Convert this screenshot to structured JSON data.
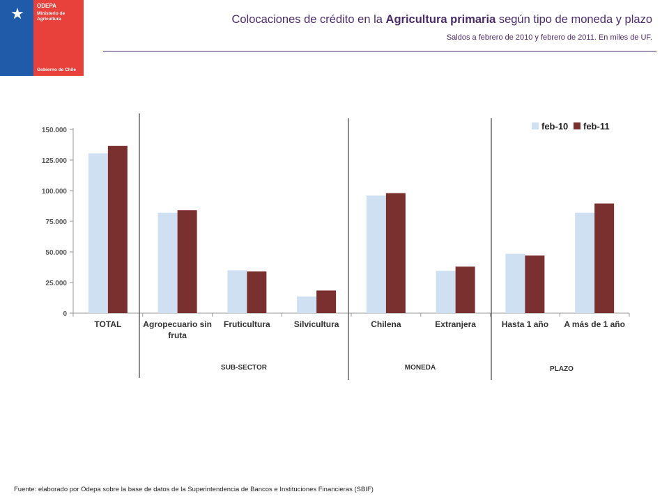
{
  "logo": {
    "org": "ODEPA",
    "ministry": "Ministerio de\nAgricultura",
    "government": "Gobierno de Chile",
    "icon": "coat-of-arms-icon"
  },
  "header": {
    "title_prefix": "Colocaciones de crédito en la ",
    "title_bold": "Agricultura primaria",
    "title_suffix": " según tipo de moneda y plazo",
    "subtitle": "Saldos a febrero de 2010  y febrero de 2011. En miles de UF."
  },
  "chart_data": {
    "type": "bar",
    "categories": [
      "TOTAL",
      "Agropecuario sin fruta",
      "Fruticultura",
      "Silvicultura",
      "Chilena",
      "Extranjera",
      "Hasta 1 año",
      "A más de 1 año"
    ],
    "category_lines": [
      [
        "TOTAL"
      ],
      [
        "Agropecuario sin",
        "fruta"
      ],
      [
        "Fruticultura"
      ],
      [
        "Silvicultura"
      ],
      [
        "Chilena"
      ],
      [
        "Extranjera"
      ],
      [
        "Hasta 1 año"
      ],
      [
        "A más de 1 año"
      ]
    ],
    "series": [
      {
        "name": "feb-10",
        "color": "#cfe0f3",
        "values": [
          130500,
          82000,
          35000,
          13500,
          96000,
          34500,
          48500,
          82000
        ]
      },
      {
        "name": "feb-11",
        "color": "#7b3030",
        "values": [
          136500,
          84000,
          34000,
          18500,
          98000,
          38000,
          47000,
          89500
        ]
      }
    ],
    "ylim": [
      0,
      150000
    ],
    "yticks": [
      "0",
      "25.000",
      "50.000",
      "75.000",
      "100.000",
      "125.000",
      "150.000"
    ],
    "ytick_values": [
      0,
      25000,
      50000,
      75000,
      100000,
      125000,
      150000
    ],
    "legend_position": "top-right",
    "groups": [
      "SUB-SECTOR",
      "MONEDA",
      "PLAZO"
    ],
    "grid": false
  },
  "footer": {
    "source": "Fuente: elaborado por Odepa sobre la base de datos de la Superintendencia de Bancos e Instituciones Financieras (SBIF)"
  }
}
